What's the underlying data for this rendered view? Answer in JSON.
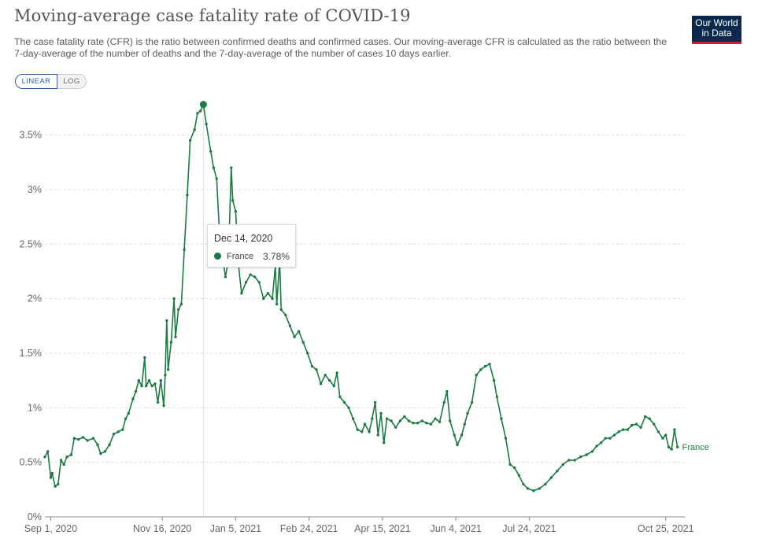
{
  "header": {
    "title": "Moving-average case fatality rate of COVID-19",
    "subtitle": "The case fatality rate (CFR) is the ratio between confirmed deaths and confirmed cases. Our moving-average CFR is calculated as the ratio between the 7-day-average of the number of deaths and the 7-day-average of the number of cases 10 days earlier.",
    "logo_line1": "Our World",
    "logo_line2": "in Data"
  },
  "controls": {
    "linear_label": "LINEAR",
    "log_label": "LOG",
    "active": "LINEAR"
  },
  "tooltip": {
    "date": "Dec 14, 2020",
    "series": "France",
    "value": "3.78%"
  },
  "colors": {
    "series": "#1d7a42",
    "grid": "#dddddd",
    "axis_text": "#666666",
    "accent": "#3360a9"
  },
  "chart_data": {
    "type": "line",
    "title": "Moving-average case fatality rate of COVID-19",
    "xlabel": "",
    "ylabel": "",
    "yscale": "linear",
    "ylim": [
      0,
      3.8
    ],
    "xlim": [
      "2020-08-28",
      "2021-11-07"
    ],
    "yticks": [
      0,
      0.5,
      1,
      1.5,
      2,
      2.5,
      3,
      3.5
    ],
    "ytick_labels": [
      "0%",
      "0.5%",
      "1%",
      "1.5%",
      "2%",
      "2.5%",
      "3%",
      "3.5%"
    ],
    "xticks": [
      "2020-09-01",
      "2020-11-16",
      "2021-01-05",
      "2021-02-24",
      "2021-04-15",
      "2021-06-04",
      "2021-07-24",
      "2021-10-25"
    ],
    "xtick_labels": [
      "Sep 1, 2020",
      "Nov 16, 2020",
      "Jan 5, 2021",
      "Feb 24, 2021",
      "Apr 15, 2021",
      "Jun 4, 2021",
      "Jul 24, 2021",
      "Oct 25, 2021"
    ],
    "grid": "horizontal dashed",
    "legend": "end-of-line label",
    "highlight": {
      "date": "2020-12-14",
      "value": 3.78
    },
    "series": [
      {
        "name": "France",
        "color": "#1d7a42",
        "points": [
          [
            "2020-08-28",
            0.55
          ],
          [
            "2020-08-30",
            0.6
          ],
          [
            "2020-09-01",
            0.36
          ],
          [
            "2020-09-02",
            0.4
          ],
          [
            "2020-09-04",
            0.28
          ],
          [
            "2020-09-06",
            0.3
          ],
          [
            "2020-09-08",
            0.52
          ],
          [
            "2020-09-10",
            0.48
          ],
          [
            "2020-09-12",
            0.55
          ],
          [
            "2020-09-15",
            0.57
          ],
          [
            "2020-09-17",
            0.72
          ],
          [
            "2020-09-20",
            0.71
          ],
          [
            "2020-09-23",
            0.73
          ],
          [
            "2020-09-26",
            0.7
          ],
          [
            "2020-09-30",
            0.72
          ],
          [
            "2020-10-03",
            0.66
          ],
          [
            "2020-10-05",
            0.58
          ],
          [
            "2020-10-08",
            0.6
          ],
          [
            "2020-10-11",
            0.66
          ],
          [
            "2020-10-14",
            0.76
          ],
          [
            "2020-10-17",
            0.78
          ],
          [
            "2020-10-20",
            0.8
          ],
          [
            "2020-10-22",
            0.9
          ],
          [
            "2020-10-24",
            0.95
          ],
          [
            "2020-10-27",
            1.08
          ],
          [
            "2020-10-29",
            1.15
          ],
          [
            "2020-10-31",
            1.25
          ],
          [
            "2020-11-02",
            1.2
          ],
          [
            "2020-11-04",
            1.46
          ],
          [
            "2020-11-05",
            1.2
          ],
          [
            "2020-11-07",
            1.25
          ],
          [
            "2020-11-09",
            1.2
          ],
          [
            "2020-11-11",
            1.22
          ],
          [
            "2020-11-13",
            1.05
          ],
          [
            "2020-11-15",
            1.25
          ],
          [
            "2020-11-17",
            1.02
          ],
          [
            "2020-11-18",
            1.3
          ],
          [
            "2020-11-19",
            1.8
          ],
          [
            "2020-11-20",
            1.35
          ],
          [
            "2020-11-22",
            1.6
          ],
          [
            "2020-11-24",
            2.0
          ],
          [
            "2020-11-25",
            1.65
          ],
          [
            "2020-11-27",
            1.9
          ],
          [
            "2020-11-29",
            1.95
          ],
          [
            "2020-12-01",
            2.45
          ],
          [
            "2020-12-03",
            2.95
          ],
          [
            "2020-12-05",
            3.45
          ],
          [
            "2020-12-08",
            3.55
          ],
          [
            "2020-12-10",
            3.7
          ],
          [
            "2020-12-12",
            3.72
          ],
          [
            "2020-12-14",
            3.78
          ],
          [
            "2020-12-16",
            3.6
          ],
          [
            "2020-12-19",
            3.35
          ],
          [
            "2020-12-21",
            3.2
          ],
          [
            "2020-12-23",
            3.1
          ],
          [
            "2020-12-25",
            2.6
          ],
          [
            "2020-12-27",
            2.4
          ],
          [
            "2020-12-29",
            2.2
          ],
          [
            "2020-12-31",
            2.35
          ],
          [
            "2021-01-02",
            3.2
          ],
          [
            "2021-01-03",
            2.9
          ],
          [
            "2021-01-05",
            2.8
          ],
          [
            "2021-01-07",
            2.3
          ],
          [
            "2021-01-09",
            2.05
          ],
          [
            "2021-01-12",
            2.15
          ],
          [
            "2021-01-15",
            2.22
          ],
          [
            "2021-01-18",
            2.2
          ],
          [
            "2021-01-21",
            2.15
          ],
          [
            "2021-01-24",
            2.0
          ],
          [
            "2021-01-27",
            2.05
          ],
          [
            "2021-01-30",
            2.0
          ],
          [
            "2021-02-01",
            2.3
          ],
          [
            "2021-02-02",
            1.95
          ],
          [
            "2021-02-04",
            2.35
          ],
          [
            "2021-02-05",
            1.9
          ],
          [
            "2021-02-08",
            1.85
          ],
          [
            "2021-02-11",
            1.75
          ],
          [
            "2021-02-14",
            1.65
          ],
          [
            "2021-02-17",
            1.7
          ],
          [
            "2021-02-20",
            1.6
          ],
          [
            "2021-02-23",
            1.5
          ],
          [
            "2021-02-26",
            1.38
          ],
          [
            "2021-03-01",
            1.35
          ],
          [
            "2021-03-04",
            1.22
          ],
          [
            "2021-03-07",
            1.3
          ],
          [
            "2021-03-10",
            1.25
          ],
          [
            "2021-03-13",
            1.2
          ],
          [
            "2021-03-15",
            1.32
          ],
          [
            "2021-03-17",
            1.1
          ],
          [
            "2021-03-20",
            1.05
          ],
          [
            "2021-03-23",
            1.0
          ],
          [
            "2021-03-26",
            0.9
          ],
          [
            "2021-03-29",
            0.8
          ],
          [
            "2021-04-01",
            0.78
          ],
          [
            "2021-04-03",
            0.85
          ],
          [
            "2021-04-06",
            0.78
          ],
          [
            "2021-04-08",
            0.9
          ],
          [
            "2021-04-10",
            1.05
          ],
          [
            "2021-04-12",
            0.75
          ],
          [
            "2021-04-14",
            0.95
          ],
          [
            "2021-04-16",
            0.68
          ],
          [
            "2021-04-18",
            0.9
          ],
          [
            "2021-04-21",
            0.88
          ],
          [
            "2021-04-24",
            0.82
          ],
          [
            "2021-04-27",
            0.88
          ],
          [
            "2021-04-30",
            0.92
          ],
          [
            "2021-05-03",
            0.88
          ],
          [
            "2021-05-06",
            0.86
          ],
          [
            "2021-05-09",
            0.86
          ],
          [
            "2021-05-12",
            0.88
          ],
          [
            "2021-05-15",
            0.86
          ],
          [
            "2021-05-18",
            0.85
          ],
          [
            "2021-05-21",
            0.9
          ],
          [
            "2021-05-24",
            0.87
          ],
          [
            "2021-05-27",
            1.05
          ],
          [
            "2021-05-29",
            1.15
          ],
          [
            "2021-05-31",
            0.88
          ],
          [
            "2021-06-03",
            0.75
          ],
          [
            "2021-06-05",
            0.66
          ],
          [
            "2021-06-08",
            0.75
          ],
          [
            "2021-06-10",
            0.85
          ],
          [
            "2021-06-12",
            0.95
          ],
          [
            "2021-06-15",
            1.05
          ],
          [
            "2021-06-18",
            1.3
          ],
          [
            "2021-06-21",
            1.35
          ],
          [
            "2021-06-24",
            1.38
          ],
          [
            "2021-06-27",
            1.4
          ],
          [
            "2021-06-30",
            1.25
          ],
          [
            "2021-07-02",
            1.1
          ],
          [
            "2021-07-05",
            0.9
          ],
          [
            "2021-07-08",
            0.72
          ],
          [
            "2021-07-11",
            0.48
          ],
          [
            "2021-07-14",
            0.45
          ],
          [
            "2021-07-17",
            0.38
          ],
          [
            "2021-07-20",
            0.3
          ],
          [
            "2021-07-23",
            0.26
          ],
          [
            "2021-07-27",
            0.24
          ],
          [
            "2021-07-31",
            0.26
          ],
          [
            "2021-08-04",
            0.3
          ],
          [
            "2021-08-08",
            0.36
          ],
          [
            "2021-08-12",
            0.42
          ],
          [
            "2021-08-16",
            0.48
          ],
          [
            "2021-08-20",
            0.52
          ],
          [
            "2021-08-24",
            0.52
          ],
          [
            "2021-08-28",
            0.55
          ],
          [
            "2021-09-01",
            0.57
          ],
          [
            "2021-09-05",
            0.6
          ],
          [
            "2021-09-08",
            0.65
          ],
          [
            "2021-09-11",
            0.68
          ],
          [
            "2021-09-14",
            0.72
          ],
          [
            "2021-09-17",
            0.72
          ],
          [
            "2021-09-20",
            0.75
          ],
          [
            "2021-09-23",
            0.78
          ],
          [
            "2021-09-26",
            0.8
          ],
          [
            "2021-09-29",
            0.8
          ],
          [
            "2021-10-02",
            0.84
          ],
          [
            "2021-10-05",
            0.85
          ],
          [
            "2021-10-08",
            0.82
          ],
          [
            "2021-10-11",
            0.92
          ],
          [
            "2021-10-14",
            0.9
          ],
          [
            "2021-10-17",
            0.85
          ],
          [
            "2021-10-20",
            0.78
          ],
          [
            "2021-10-23",
            0.72
          ],
          [
            "2021-10-25",
            0.75
          ],
          [
            "2021-10-27",
            0.64
          ],
          [
            "2021-10-29",
            0.62
          ],
          [
            "2021-10-31",
            0.8
          ],
          [
            "2021-11-02",
            0.64
          ]
        ]
      }
    ]
  }
}
